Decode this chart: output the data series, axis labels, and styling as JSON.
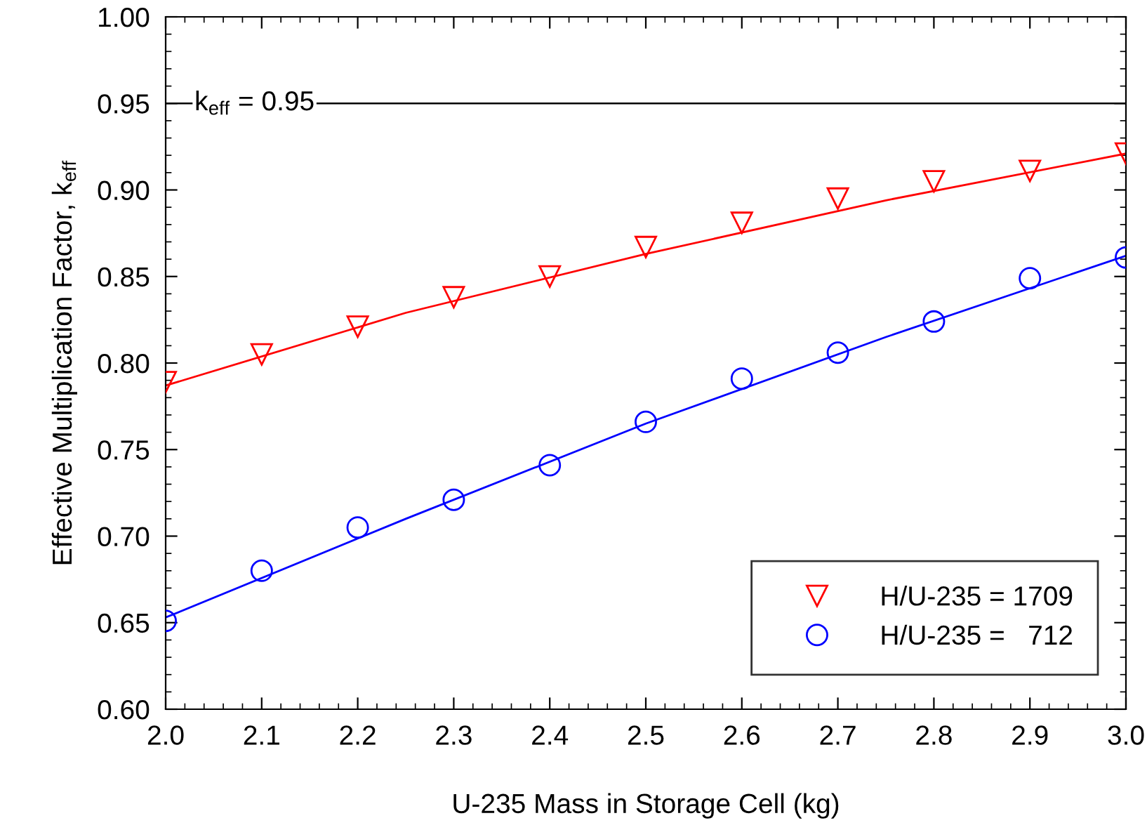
{
  "chart_data": {
    "type": "scatter",
    "xlabel": "U-235 Mass in Storage Cell (kg)",
    "ylabel": "Effective Multiplication Factor, k$_{eff}$",
    "x": [
      2.0,
      2.1,
      2.2,
      2.3,
      2.4,
      2.5,
      2.6,
      2.7,
      2.8,
      2.9,
      3.0
    ],
    "series": [
      {
        "name": "H/U-235 = 1709",
        "color": "#ff0000",
        "marker": "triangle",
        "values": [
          0.789,
          0.805,
          0.821,
          0.838,
          0.85,
          0.867,
          0.881,
          0.895,
          0.905,
          0.911,
          0.921
        ]
      },
      {
        "name": "H/U-235 =   712",
        "color": "#0000ff",
        "marker": "circle",
        "values": [
          0.651,
          0.68,
          0.705,
          0.721,
          0.741,
          0.766,
          0.791,
          0.806,
          0.824,
          0.849,
          0.861
        ]
      },
      {
        "type": "line",
        "color": "#ff0000",
        "x": [
          2.0,
          2.25,
          2.5,
          2.75,
          3.0
        ],
        "values": [
          0.787,
          0.829,
          0.863,
          0.894,
          0.921
        ]
      },
      {
        "type": "line",
        "color": "#0000ff",
        "x": [
          2.0,
          2.25,
          2.5,
          2.75,
          3.0
        ],
        "values": [
          0.653,
          0.71,
          0.765,
          0.815,
          0.862
        ]
      }
    ],
    "xlim": [
      2.0,
      3.0
    ],
    "xticks": [
      {
        "value": 2.0,
        "label": "2.0"
      },
      2.1,
      2.2,
      2.3,
      2.4,
      2.5,
      2.6,
      2.7,
      2.8,
      2.9,
      {
        "value": 3.0,
        "label": "3.0"
      }
    ],
    "ylim": [
      0.6,
      1.0
    ],
    "yticks": [
      {
        "value": 0.6,
        "label": "0.60"
      },
      0.65,
      {
        "value": 0.7,
        "label": "0.70"
      },
      0.75,
      {
        "value": 0.8,
        "label": "0.80"
      },
      0.85,
      {
        "value": 0.9,
        "label": "0.90"
      },
      0.95,
      {
        "value": 1.0,
        "label": "1.00"
      }
    ],
    "ref_lines": [
      {
        "axis": "y",
        "value": 0.95,
        "label": "k$_{eff}$ = 0.95",
        "color": "#000000"
      }
    ],
    "legend": "bottom right",
    "grid": false
  }
}
